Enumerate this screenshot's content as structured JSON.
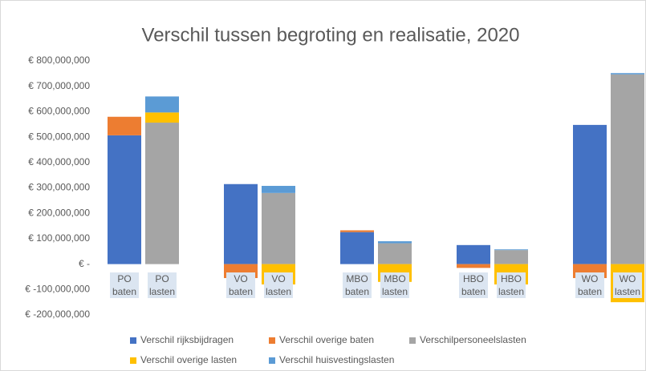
{
  "chart_data": {
    "type": "stacked_bar",
    "title": "Verschil tussen begroting en realisatie, 2020",
    "categories": [
      "PO baten",
      "PO lasten",
      "VO baten",
      "VO lasten",
      "MBO baten",
      "MBO lasten",
      "HBO baten",
      "HBO lasten",
      "WO baten",
      "WO lasten"
    ],
    "series": [
      {
        "name": "Verschil rijksbijdragen",
        "color": "#4472c4",
        "values": [
          507000000,
          0,
          315000000,
          0,
          126000000,
          0,
          75000000,
          0,
          548000000,
          0
        ]
      },
      {
        "name": "Verschil overige baten",
        "color": "#ed7d31",
        "values": [
          73000000,
          0,
          -55000000,
          0,
          7000000,
          0,
          -15000000,
          0,
          -55000000,
          0
        ]
      },
      {
        "name": "Verschilpersoneelslasten",
        "color": "#a5a5a5",
        "values": [
          0,
          557000000,
          0,
          280000000,
          0,
          82000000,
          0,
          55000000,
          0,
          747000000
        ]
      },
      {
        "name": "Verschil overige lasten",
        "color": "#ffc000",
        "values": [
          0,
          40000000,
          0,
          -80000000,
          0,
          -70000000,
          0,
          -80000000,
          0,
          -150000000
        ]
      },
      {
        "name": "Verschil huisvestingslasten",
        "color": "#5b9bd5",
        "values": [
          0,
          63000000,
          0,
          28000000,
          0,
          8000000,
          0,
          3000000,
          0,
          5000000
        ]
      }
    ],
    "ylim": [
      -200000000,
      800000000
    ],
    "yticks": [
      {
        "value": -200000000,
        "label": "€ -200,000,000"
      },
      {
        "value": -100000000,
        "label": "€ -100,000,000"
      },
      {
        "value": 0,
        "label": "€ -"
      },
      {
        "value": 100000000,
        "label": "€ 100,000,000"
      },
      {
        "value": 200000000,
        "label": "€ 200,000,000"
      },
      {
        "value": 300000000,
        "label": "€ 300,000,000"
      },
      {
        "value": 400000000,
        "label": "€ 400,000,000"
      },
      {
        "value": 500000000,
        "label": "€ 500,000,000"
      },
      {
        "value": 600000000,
        "label": "€ 600,000,000"
      },
      {
        "value": 700000000,
        "label": "€ 700,000,000"
      },
      {
        "value": 800000000,
        "label": "€ 800,000,000"
      }
    ],
    "grid": false
  }
}
